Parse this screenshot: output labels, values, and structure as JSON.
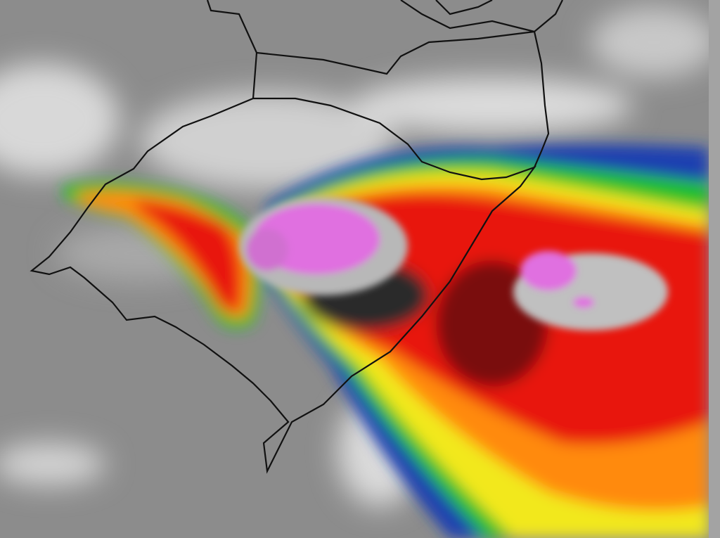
{
  "map": {
    "type": "enhanced infrared satellite image",
    "colors": {
      "background_gray": "#8c8c8c",
      "cold_cloud_white": "#e6e6e6",
      "blue": "#1a3fb0",
      "green": "#22c02a",
      "yellow": "#f2e81e",
      "orange": "#ff8a10",
      "red": "#e8140a",
      "dark_red": "#6a1010",
      "black_core": "#1e1e1e",
      "gray_core": "#b0b0b0",
      "magenta_core": "#e070e0",
      "boundary_line": "#111111"
    }
  }
}
